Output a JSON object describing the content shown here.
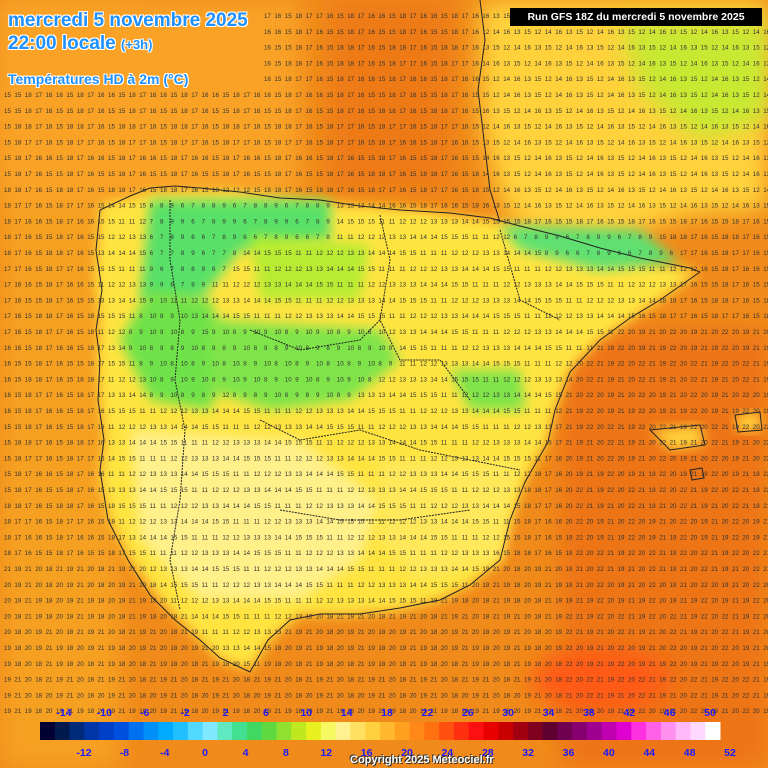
{
  "header": {
    "date": "mercredi 5 novembre 2025",
    "time": "22:00 locale",
    "offset": "(+3h)",
    "parameter": "Températures HD à 2m (°C)"
  },
  "run_info": "Run GFS 18Z du mercredi 5 novembre 2025",
  "copyright": "Copyright 2025 Meteociel.fr",
  "legend": {
    "top_labels": [
      "-14",
      "-10",
      "-6",
      "-2",
      "2",
      "6",
      "10",
      "14",
      "18",
      "22",
      "26",
      "30",
      "34",
      "38",
      "42",
      "46",
      "50"
    ],
    "bottom_labels": [
      "-12",
      "-8",
      "-4",
      "0",
      "4",
      "8",
      "12",
      "16",
      "20",
      "24",
      "28",
      "32",
      "36",
      "40",
      "44",
      "48",
      "52"
    ],
    "colors": [
      "#000033",
      "#001a4d",
      "#002a7a",
      "#0036a8",
      "#0040c8",
      "#0050e0",
      "#0070f0",
      "#0090f8",
      "#00aaff",
      "#20c0ff",
      "#50d8ff",
      "#80e8ff",
      "#60e8c0",
      "#40e090",
      "#40d860",
      "#60d840",
      "#90e030",
      "#c0e820",
      "#e8f020",
      "#f8f860",
      "#fff090",
      "#ffe060",
      "#ffd040",
      "#ffb830",
      "#ffa020",
      "#ff8818",
      "#ff7010",
      "#ff5010",
      "#ff3010",
      "#ff1010",
      "#e80000",
      "#c80000",
      "#a00010",
      "#800020",
      "#600030",
      "#700050",
      "#880070",
      "#a00090",
      "#c000b0",
      "#e000d0",
      "#ff30e0",
      "#ff60e8",
      "#ff90f0",
      "#ffb8f8",
      "#ffd8ff",
      "#ffffff"
    ]
  },
  "colors": {
    "sea": "#f08a1a",
    "title_blue": "#1e90ff"
  }
}
